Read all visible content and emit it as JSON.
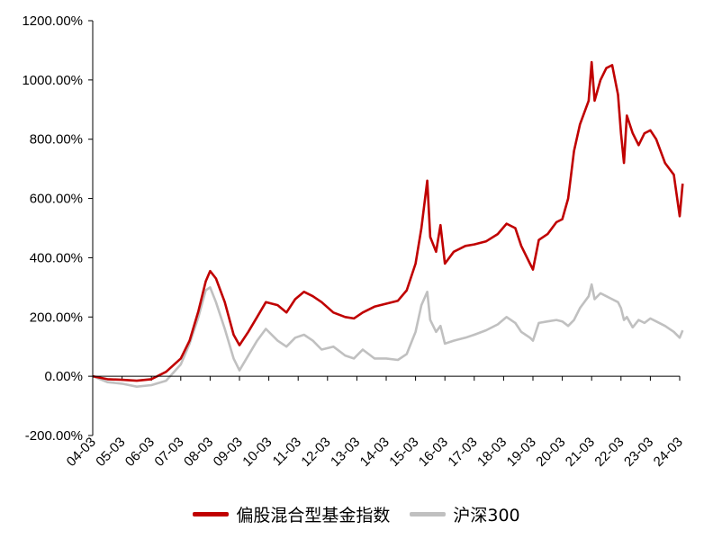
{
  "chart_data": {
    "type": "line",
    "title": "",
    "xlabel": "",
    "ylabel": "",
    "ylim": [
      -200,
      1200
    ],
    "y_ticks": [
      -200,
      0,
      200,
      400,
      600,
      800,
      1000,
      1200
    ],
    "y_tick_labels": [
      "-200.00%",
      "0.00%",
      "200.00%",
      "400.00%",
      "600.00%",
      "800.00%",
      "1000.00%",
      "1200.00%"
    ],
    "x_ticks": [
      2004,
      2005,
      2006,
      2007,
      2008,
      2009,
      2010,
      2011,
      2012,
      2013,
      2014,
      2015,
      2016,
      2017,
      2018,
      2019,
      2020,
      2021,
      2022,
      2023,
      2024
    ],
    "x_tick_labels": [
      "04-03",
      "05-03",
      "06-03",
      "07-03",
      "08-03",
      "09-03",
      "10-03",
      "11-03",
      "12-03",
      "13-03",
      "14-03",
      "15-03",
      "16-03",
      "17-03",
      "18-03",
      "19-03",
      "20-03",
      "21-03",
      "22-03",
      "23-03",
      "24-03"
    ],
    "xlim": [
      2004,
      2024
    ],
    "grid": false,
    "legend_position": "bottom",
    "series": [
      {
        "name": "偏股混合型基金指数",
        "color": "#c00000",
        "points": [
          [
            2004.0,
            0
          ],
          [
            2004.5,
            -10
          ],
          [
            2005.0,
            -12
          ],
          [
            2005.5,
            -15
          ],
          [
            2006.0,
            -10
          ],
          [
            2006.5,
            15
          ],
          [
            2007.0,
            60
          ],
          [
            2007.3,
            120
          ],
          [
            2007.6,
            220
          ],
          [
            2007.85,
            320
          ],
          [
            2008.0,
            355
          ],
          [
            2008.2,
            330
          ],
          [
            2008.5,
            250
          ],
          [
            2008.8,
            140
          ],
          [
            2009.0,
            105
          ],
          [
            2009.3,
            150
          ],
          [
            2009.6,
            200
          ],
          [
            2009.9,
            250
          ],
          [
            2010.3,
            240
          ],
          [
            2010.6,
            215
          ],
          [
            2010.9,
            260
          ],
          [
            2011.2,
            285
          ],
          [
            2011.5,
            270
          ],
          [
            2011.8,
            250
          ],
          [
            2012.2,
            215
          ],
          [
            2012.6,
            200
          ],
          [
            2012.9,
            195
          ],
          [
            2013.2,
            215
          ],
          [
            2013.6,
            235
          ],
          [
            2014.0,
            245
          ],
          [
            2014.4,
            255
          ],
          [
            2014.7,
            290
          ],
          [
            2015.0,
            380
          ],
          [
            2015.2,
            500
          ],
          [
            2015.4,
            660
          ],
          [
            2015.5,
            470
          ],
          [
            2015.7,
            420
          ],
          [
            2015.85,
            510
          ],
          [
            2016.0,
            380
          ],
          [
            2016.3,
            420
          ],
          [
            2016.7,
            440
          ],
          [
            2017.0,
            445
          ],
          [
            2017.4,
            455
          ],
          [
            2017.8,
            480
          ],
          [
            2018.1,
            515
          ],
          [
            2018.4,
            500
          ],
          [
            2018.6,
            440
          ],
          [
            2018.9,
            380
          ],
          [
            2019.0,
            360
          ],
          [
            2019.2,
            460
          ],
          [
            2019.5,
            480
          ],
          [
            2019.8,
            520
          ],
          [
            2020.0,
            530
          ],
          [
            2020.2,
            600
          ],
          [
            2020.4,
            760
          ],
          [
            2020.6,
            850
          ],
          [
            2020.9,
            930
          ],
          [
            2021.0,
            1060
          ],
          [
            2021.1,
            930
          ],
          [
            2021.3,
            1000
          ],
          [
            2021.5,
            1040
          ],
          [
            2021.7,
            1050
          ],
          [
            2021.9,
            950
          ],
          [
            2022.0,
            820
          ],
          [
            2022.1,
            720
          ],
          [
            2022.2,
            880
          ],
          [
            2022.4,
            820
          ],
          [
            2022.6,
            780
          ],
          [
            2022.8,
            820
          ],
          [
            2023.0,
            830
          ],
          [
            2023.2,
            800
          ],
          [
            2023.5,
            720
          ],
          [
            2023.8,
            680
          ],
          [
            2024.0,
            540
          ],
          [
            2024.1,
            650
          ]
        ]
      },
      {
        "name": "沪深300",
        "color": "#c0c0c0",
        "points": [
          [
            2004.0,
            0
          ],
          [
            2004.5,
            -20
          ],
          [
            2005.0,
            -25
          ],
          [
            2005.5,
            -35
          ],
          [
            2006.0,
            -30
          ],
          [
            2006.5,
            -15
          ],
          [
            2007.0,
            40
          ],
          [
            2007.3,
            110
          ],
          [
            2007.6,
            200
          ],
          [
            2007.85,
            290
          ],
          [
            2008.0,
            300
          ],
          [
            2008.2,
            250
          ],
          [
            2008.5,
            160
          ],
          [
            2008.8,
            60
          ],
          [
            2009.0,
            20
          ],
          [
            2009.3,
            70
          ],
          [
            2009.6,
            120
          ],
          [
            2009.9,
            160
          ],
          [
            2010.3,
            120
          ],
          [
            2010.6,
            100
          ],
          [
            2010.9,
            130
          ],
          [
            2011.2,
            140
          ],
          [
            2011.5,
            120
          ],
          [
            2011.8,
            90
          ],
          [
            2012.2,
            100
          ],
          [
            2012.6,
            70
          ],
          [
            2012.9,
            60
          ],
          [
            2013.2,
            90
          ],
          [
            2013.6,
            60
          ],
          [
            2014.0,
            60
          ],
          [
            2014.4,
            55
          ],
          [
            2014.7,
            75
          ],
          [
            2015.0,
            150
          ],
          [
            2015.2,
            240
          ],
          [
            2015.4,
            285
          ],
          [
            2015.5,
            190
          ],
          [
            2015.7,
            150
          ],
          [
            2015.85,
            170
          ],
          [
            2016.0,
            110
          ],
          [
            2016.3,
            120
          ],
          [
            2016.7,
            130
          ],
          [
            2017.0,
            140
          ],
          [
            2017.4,
            155
          ],
          [
            2017.8,
            175
          ],
          [
            2018.1,
            200
          ],
          [
            2018.4,
            180
          ],
          [
            2018.6,
            150
          ],
          [
            2018.9,
            130
          ],
          [
            2019.0,
            120
          ],
          [
            2019.2,
            180
          ],
          [
            2019.5,
            185
          ],
          [
            2019.8,
            190
          ],
          [
            2020.0,
            185
          ],
          [
            2020.2,
            170
          ],
          [
            2020.4,
            190
          ],
          [
            2020.6,
            230
          ],
          [
            2020.9,
            270
          ],
          [
            2021.0,
            310
          ],
          [
            2021.1,
            260
          ],
          [
            2021.3,
            280
          ],
          [
            2021.5,
            270
          ],
          [
            2021.7,
            260
          ],
          [
            2021.9,
            250
          ],
          [
            2022.0,
            230
          ],
          [
            2022.1,
            190
          ],
          [
            2022.2,
            200
          ],
          [
            2022.4,
            165
          ],
          [
            2022.6,
            190
          ],
          [
            2022.8,
            180
          ],
          [
            2023.0,
            195
          ],
          [
            2023.2,
            185
          ],
          [
            2023.5,
            170
          ],
          [
            2023.8,
            150
          ],
          [
            2024.0,
            130
          ],
          [
            2024.1,
            155
          ]
        ]
      }
    ]
  }
}
